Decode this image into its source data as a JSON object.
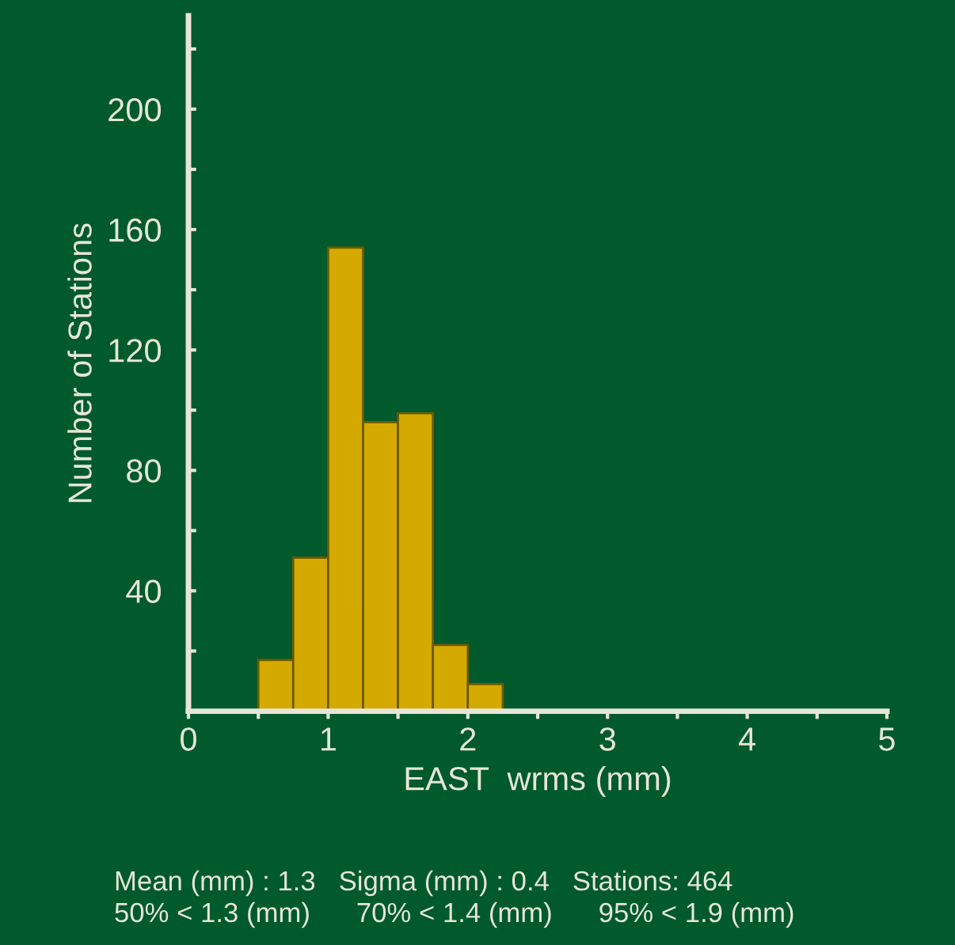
{
  "chart_data": {
    "type": "histogram",
    "bins": [
      0.5,
      0.75,
      1.0,
      1.25,
      1.5,
      1.75,
      2.0,
      2.25
    ],
    "values": [
      17,
      51,
      154,
      96,
      99,
      22,
      9
    ],
    "color": "#d4aa00",
    "xlabel": "EAST  wrms (mm)",
    "ylabel": "Number of Stations",
    "xlim": [
      0,
      5
    ],
    "ylim": [
      0,
      231
    ],
    "xticks": [
      0,
      {
        "value": 0.5,
        "label": null
      },
      1,
      {
        "value": 1.5,
        "label": null
      },
      2,
      {
        "value": 2.5,
        "label": null
      },
      3,
      {
        "value": 3.5,
        "label": null
      },
      4,
      {
        "value": 4.5,
        "label": null
      },
      5
    ],
    "yticks": [
      {
        "value": 20,
        "label": null
      },
      40,
      {
        "value": 60,
        "label": null
      },
      80,
      {
        "value": 100,
        "label": null
      },
      120,
      {
        "value": 140,
        "label": null
      },
      160,
      {
        "value": 180,
        "label": null
      },
      200,
      {
        "value": 220,
        "label": null
      }
    ],
    "grid": false,
    "annotations": [
      "Mean (mm) : 1.3   Sigma (mm) : 0.4   Stations: 464",
      "50% < 1.3 (mm)      70% < 1.4 (mm)      95% < 1.9 (mm)"
    ]
  }
}
